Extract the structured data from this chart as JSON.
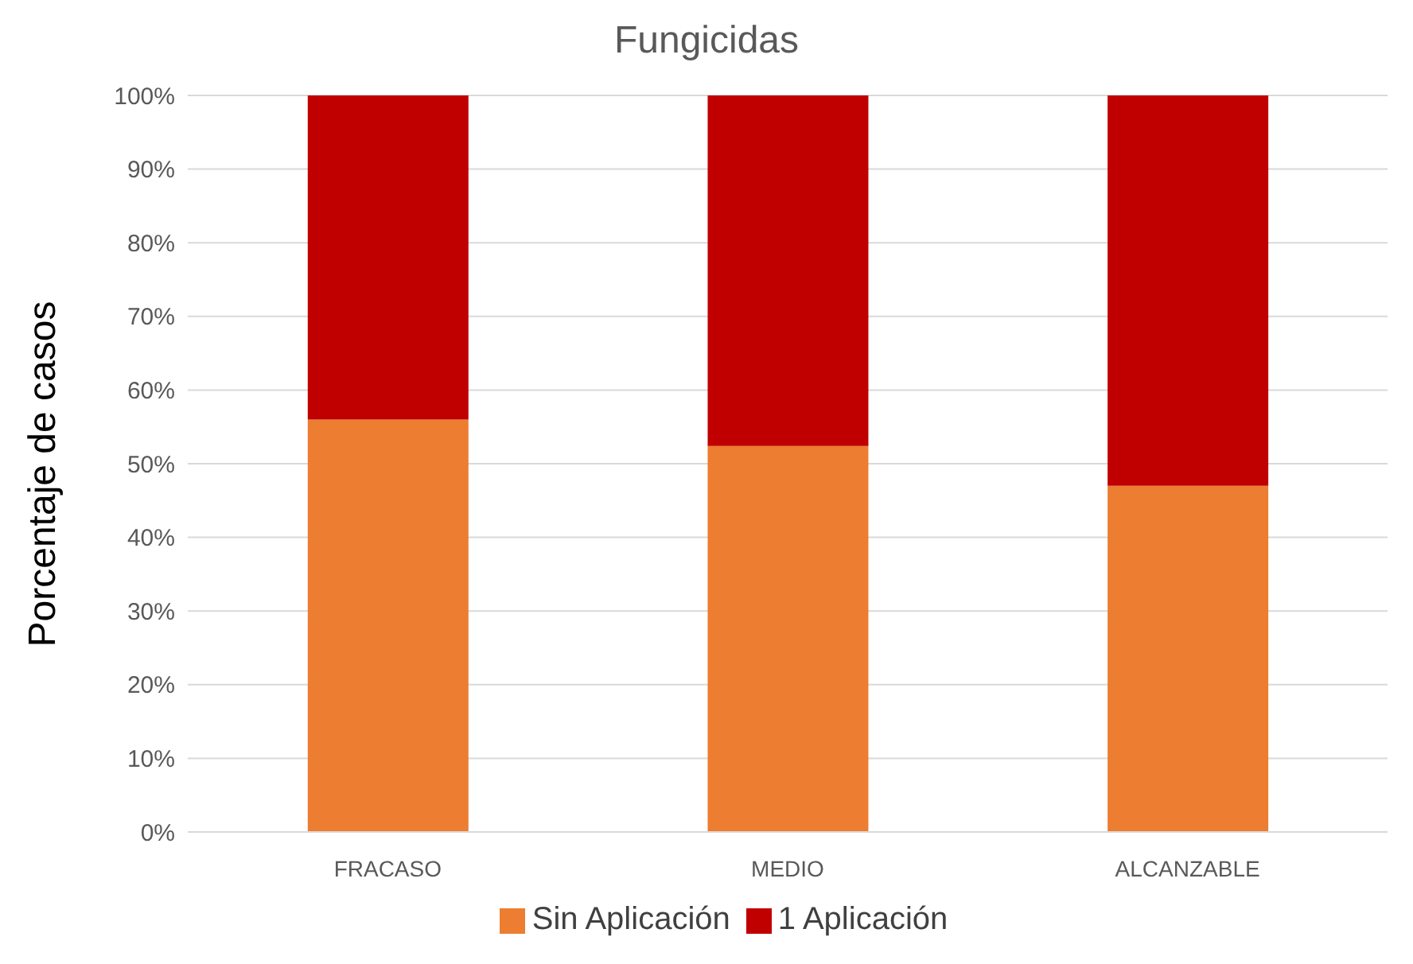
{
  "chart_data": {
    "type": "bar",
    "stacked": true,
    "title": "Fungicidas",
    "ylabel": "Porcentaje de casos",
    "categories": [
      "FRACASO",
      "MEDIO",
      "ALCANZABLE"
    ],
    "series": [
      {
        "name": "Sin Aplicación",
        "color": "#ed7d31",
        "values": [
          56,
          52.4,
          47
        ]
      },
      {
        "name": "1 Aplicación",
        "color": "#c00000",
        "values": [
          44,
          47.6,
          53
        ]
      }
    ],
    "ylim": [
      0,
      100
    ],
    "yticks": [
      {
        "value": 0,
        "label": "0%"
      },
      {
        "value": 10,
        "label": "10%"
      },
      {
        "value": 20,
        "label": "20%"
      },
      {
        "value": 30,
        "label": "30%"
      },
      {
        "value": 40,
        "label": "40%"
      },
      {
        "value": 50,
        "label": "50%"
      },
      {
        "value": 60,
        "label": "60%"
      },
      {
        "value": 70,
        "label": "70%"
      },
      {
        "value": 80,
        "label": "80%"
      },
      {
        "value": 90,
        "label": "90%"
      },
      {
        "value": 100,
        "label": "100%"
      }
    ],
    "grid": "y",
    "legend": "bottom"
  }
}
